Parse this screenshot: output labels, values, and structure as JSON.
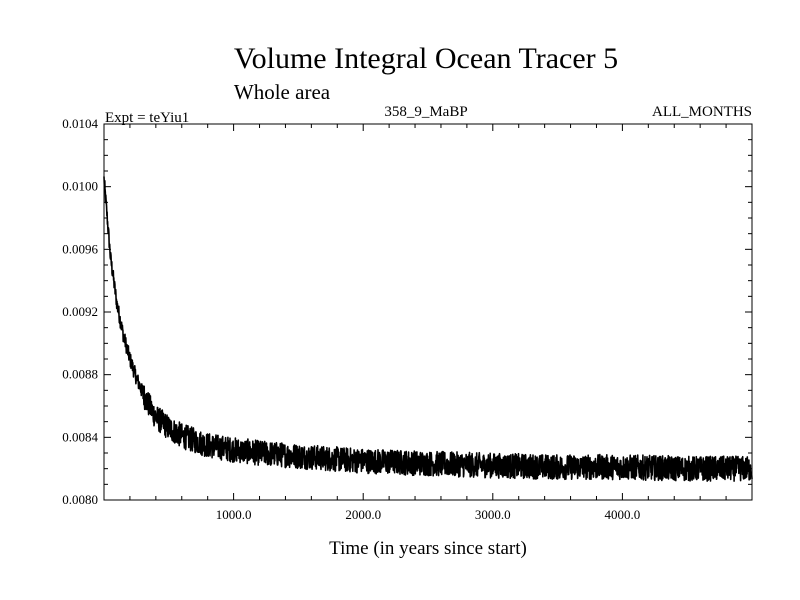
{
  "header": {
    "title": "Volume Integral Ocean Tracer 5",
    "subtitle": "Whole area",
    "expt": "Expt = teYiu1",
    "period": "358_9_MaBP",
    "months": "ALL_MONTHS"
  },
  "chart_data": {
    "type": "line",
    "title": "Volume Integral Ocean Tracer 5",
    "subtitle": "Whole area",
    "xlabel": "Time (in years since start)",
    "ylabel": "",
    "xlim": [
      0,
      5000
    ],
    "ylim": [
      0.008,
      0.0104
    ],
    "x_ticks": [
      1000,
      2000,
      3000,
      4000
    ],
    "x_tick_labels": [
      "1000.0",
      "2000.0",
      "3000.0",
      "4000.0"
    ],
    "y_ticks": [
      0.008,
      0.0084,
      0.0088,
      0.0092,
      0.0096,
      0.01,
      0.0104
    ],
    "y_tick_labels": [
      "0.0080",
      "0.0084",
      "0.0088",
      "0.0092",
      "0.0096",
      "0.0100",
      "0.0104"
    ],
    "grid": false,
    "series": [
      {
        "color": "#000000",
        "x": [
          0,
          20,
          50,
          100,
          150,
          200,
          250,
          300,
          350,
          400,
          500,
          600,
          700,
          800,
          1000,
          1200,
          1500,
          1800,
          2000,
          2300,
          2600,
          3000,
          3500,
          4000,
          4500,
          5000
        ],
        "y": [
          0.01005,
          0.00985,
          0.00955,
          0.00925,
          0.00905,
          0.0089,
          0.00878,
          0.00868,
          0.0086,
          0.00853,
          0.00846,
          0.00841,
          0.00838,
          0.00835,
          0.00832,
          0.0083,
          0.00828,
          0.00826,
          0.00825,
          0.00824,
          0.00823,
          0.00822,
          0.00821,
          0.00821,
          0.0082,
          0.0082
        ],
        "noise_amplitude": 8e-05
      }
    ]
  }
}
